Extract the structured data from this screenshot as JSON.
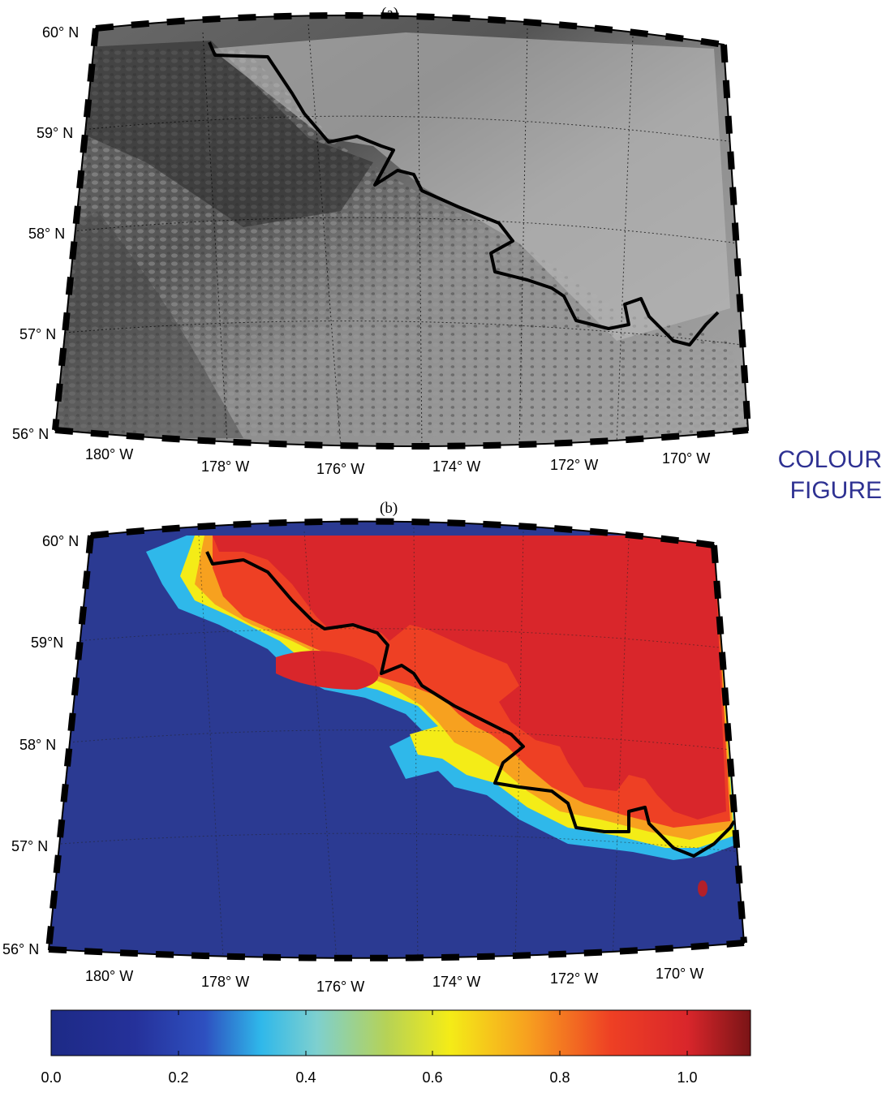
{
  "panels": [
    {
      "label": "(a)",
      "lat_labels": [
        "60° N",
        "59° N",
        "58° N",
        "57° N",
        "56° N"
      ],
      "lon_labels": [
        "180° W",
        "178° W",
        "176° W",
        "174° W",
        "172° W",
        "170° W"
      ]
    },
    {
      "label": "(b)",
      "lat_labels": [
        "60° N",
        "59°N",
        "58° N",
        "57° N",
        "56° N"
      ],
      "lon_labels": [
        "180° W",
        "178° W",
        "176° W",
        "174° W",
        "172° W",
        "170° W"
      ]
    }
  ],
  "stamp": {
    "line1": "COLOUR",
    "line2": "FIGURE"
  },
  "colorbar": {
    "ticks": [
      "0.0",
      "0.2",
      "0.4",
      "0.6",
      "0.8",
      "1.0"
    ],
    "range": [
      0.0,
      1.1
    ],
    "colormap": "jet"
  },
  "colors": {
    "ice": "#d9262b",
    "water": "#2b3a92",
    "stamp": "#2e3192"
  }
}
